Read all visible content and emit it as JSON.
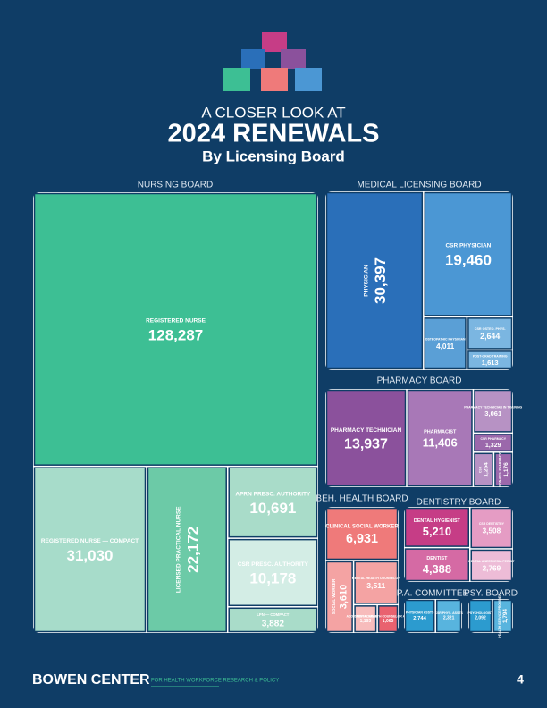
{
  "chart_data": {
    "type": "treemap",
    "title": "2024 RENEWALS",
    "pretitle": "A CLOSER LOOK AT",
    "subtitle": "By Licensing Board",
    "footer": {
      "brand": "BOWEN CENTER",
      "tagline": "FOR HEALTH WORKFORCE RESEARCH & POLICY",
      "page": "4"
    },
    "series": [
      {
        "name": "NURSING BOARD",
        "colors": [
          "#3dbf94",
          "#a7dcca",
          "#6ccaa7",
          "#a9dcc9",
          "#d3ede5",
          "#a9dcc9"
        ],
        "categories": [
          "REGISTERED NURSE",
          "REGISTERED NURSE — COMPACT",
          "LICENSED PRACTICAL NURSE",
          "APRN PRESC. AUTHORITY",
          "CSR PRESC. AUTHORITY",
          "LPN — COMPACT"
        ],
        "values": [
          128287,
          31030,
          22172,
          10691,
          10178,
          3882
        ],
        "value_labels": [
          "128,287",
          "31,030",
          "22,172",
          "10,691",
          "10,178",
          "3,882"
        ]
      },
      {
        "name": "MEDICAL LICENSING BOARD",
        "colors": [
          "#2a6fb9",
          "#4b97d4",
          "#5a9fd6",
          "#7bb6e1",
          "#7bb6e1"
        ],
        "categories": [
          "PHYSICIAN",
          "CSR PHYSICIAN",
          "OSTEOPATHIC PHYSICIAN",
          "CSR OSTEO. PHYS.",
          "POST-GRAD TRAINING"
        ],
        "values": [
          30397,
          19460,
          4011,
          2644,
          1613
        ],
        "value_labels": [
          "30,397",
          "19,460",
          "4,011",
          "2,644",
          "1,613"
        ]
      },
      {
        "name": "PHARMACY BOARD",
        "colors": [
          "#8b519c",
          "#a878b7",
          "#b792c4",
          "#9b68ab",
          "#b792c4",
          "#9b68ab"
        ],
        "categories": [
          "PHARMACY TECHNICIAN",
          "PHARMACIST",
          "PHARMACY TECHNICIAN IN TRAINING",
          "CSR PHARMACY",
          "CSR",
          "NON-RES. PHARMACY"
        ],
        "values": [
          13937,
          11406,
          3061,
          1329,
          1254,
          1176
        ],
        "value_labels": [
          "13,937",
          "11,406",
          "3,061",
          "1,329",
          "1,254",
          "1,176"
        ]
      },
      {
        "name": "BEH. HEALTH BOARD",
        "colors": [
          "#ef7a7a",
          "#f4a3a3",
          "#f4a3a3",
          "#f7bcbc",
          "#e9626f"
        ],
        "categories": [
          "CLINICAL SOCIAL WORKER",
          "SOCIAL WORKER",
          "MENTAL HEALTH COUNSELOR",
          "ADDICTION COUNSELOR",
          "MENTAL HEALTH COUNSELOR ASSOCIATE"
        ],
        "values": [
          6931,
          3610,
          3511,
          1183,
          1065
        ],
        "value_labels": [
          "6,931",
          "3,610",
          "3,511",
          "1,183",
          "1,065"
        ]
      },
      {
        "name": "DENTISTRY BOARD",
        "colors": [
          "#c63d86",
          "#d56aa4",
          "#e59cc4",
          "#edbcd7"
        ],
        "categories": [
          "DENTAL HYGIENIST",
          "DENTIST",
          "CSR DENTISTRY",
          "DENTAL ANESTHESIA PERMIT"
        ],
        "values": [
          5210,
          4388,
          3508,
          2769
        ],
        "value_labels": [
          "5,210",
          "4,388",
          "3,508",
          "2,769"
        ]
      },
      {
        "name": "P.A. COMMITTEE",
        "colors": [
          "#2c9bcf",
          "#58b4de"
        ],
        "categories": [
          "PHYSICIAN ASSTS",
          "CSR PHYS. ASSTS"
        ],
        "values": [
          2744,
          2321
        ],
        "value_labels": [
          "2,744",
          "2,321"
        ]
      },
      {
        "name": "PSY. BOARD",
        "colors": [
          "#2c9bcf",
          "#58b4de"
        ],
        "categories": [
          "PSYCHOLOGIST",
          "HEALTH SERVICE PROVIDER"
        ],
        "values": [
          2092,
          1794
        ],
        "value_labels": [
          "2,092",
          "1,794"
        ]
      }
    ]
  }
}
